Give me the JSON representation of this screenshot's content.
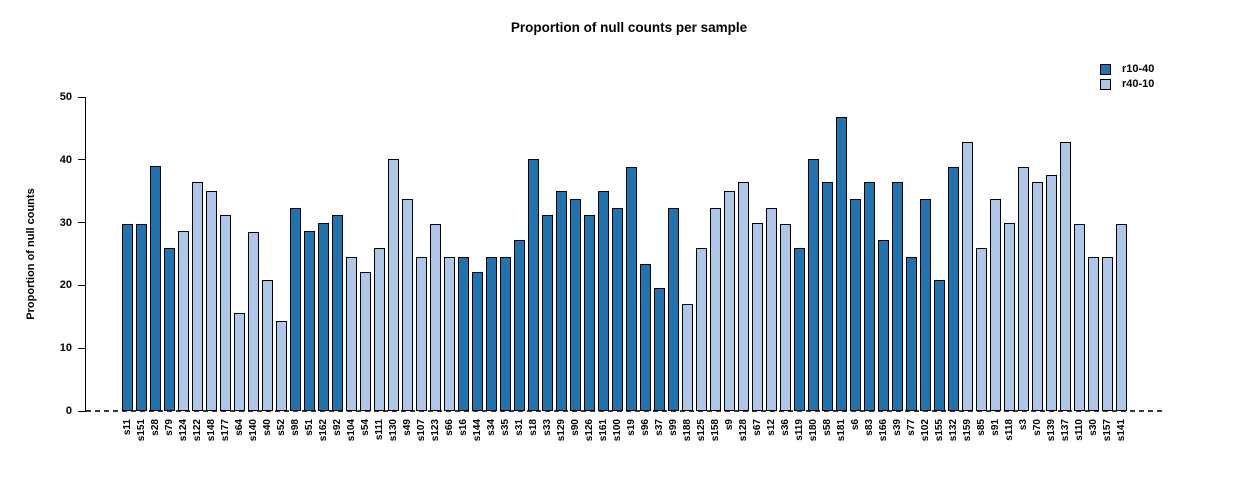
{
  "chart_data": {
    "type": "bar",
    "title": "Proportion of null counts per sample",
    "xlabel": "",
    "ylabel": "Proportion of null counts",
    "ylim": [
      0,
      50
    ],
    "yticks": [
      0,
      10,
      20,
      30,
      40,
      50
    ],
    "grid": false,
    "legend_position": "top-right",
    "zero_baseline_style": "dashed",
    "legend": [
      {
        "label": "r10-40",
        "color": "#2073ae"
      },
      {
        "label": "r40-10",
        "color": "#aec7e8"
      }
    ],
    "bars": [
      {
        "sample": "s11",
        "value": 29.8,
        "series": "r10-40"
      },
      {
        "sample": "s151",
        "value": 29.8,
        "series": "r10-40"
      },
      {
        "sample": "s28",
        "value": 39.0,
        "series": "r10-40"
      },
      {
        "sample": "s79",
        "value": 26.0,
        "series": "r10-40"
      },
      {
        "sample": "s124",
        "value": 28.6,
        "series": "r40-10"
      },
      {
        "sample": "s122",
        "value": 36.4,
        "series": "r40-10"
      },
      {
        "sample": "s148",
        "value": 35.0,
        "series": "r40-10"
      },
      {
        "sample": "s177",
        "value": 31.2,
        "series": "r40-10"
      },
      {
        "sample": "s64",
        "value": 15.6,
        "series": "r40-10"
      },
      {
        "sample": "s140",
        "value": 28.5,
        "series": "r40-10"
      },
      {
        "sample": "s40",
        "value": 20.8,
        "series": "r40-10"
      },
      {
        "sample": "s52",
        "value": 14.4,
        "series": "r40-10"
      },
      {
        "sample": "s98",
        "value": 32.4,
        "series": "r10-40"
      },
      {
        "sample": "s51",
        "value": 28.6,
        "series": "r10-40"
      },
      {
        "sample": "s162",
        "value": 29.9,
        "series": "r10-40"
      },
      {
        "sample": "s92",
        "value": 31.2,
        "series": "r10-40"
      },
      {
        "sample": "s104",
        "value": 24.6,
        "series": "r40-10"
      },
      {
        "sample": "s54",
        "value": 22.1,
        "series": "r40-10"
      },
      {
        "sample": "s111",
        "value": 26.0,
        "series": "r40-10"
      },
      {
        "sample": "s130",
        "value": 40.2,
        "series": "r40-10"
      },
      {
        "sample": "s49",
        "value": 33.8,
        "series": "r40-10"
      },
      {
        "sample": "s107",
        "value": 24.6,
        "series": "r40-10"
      },
      {
        "sample": "s123",
        "value": 29.8,
        "series": "r40-10"
      },
      {
        "sample": "s66",
        "value": 24.6,
        "series": "r40-10"
      },
      {
        "sample": "s16",
        "value": 24.6,
        "series": "r10-40"
      },
      {
        "sample": "s144",
        "value": 22.1,
        "series": "r10-40"
      },
      {
        "sample": "s34",
        "value": 24.6,
        "series": "r10-40"
      },
      {
        "sample": "s35",
        "value": 24.6,
        "series": "r10-40"
      },
      {
        "sample": "s31",
        "value": 27.3,
        "series": "r10-40"
      },
      {
        "sample": "s18",
        "value": 40.1,
        "series": "r10-40"
      },
      {
        "sample": "s33",
        "value": 31.2,
        "series": "r10-40"
      },
      {
        "sample": "s129",
        "value": 35.0,
        "series": "r10-40"
      },
      {
        "sample": "s90",
        "value": 33.8,
        "series": "r10-40"
      },
      {
        "sample": "s126",
        "value": 31.2,
        "series": "r10-40"
      },
      {
        "sample": "s161",
        "value": 35.0,
        "series": "r10-40"
      },
      {
        "sample": "s100",
        "value": 32.4,
        "series": "r10-40"
      },
      {
        "sample": "s19",
        "value": 38.9,
        "series": "r10-40"
      },
      {
        "sample": "s96",
        "value": 23.4,
        "series": "r10-40"
      },
      {
        "sample": "s37",
        "value": 19.6,
        "series": "r10-40"
      },
      {
        "sample": "s99",
        "value": 32.4,
        "series": "r10-40"
      },
      {
        "sample": "s188",
        "value": 17.0,
        "series": "r40-10"
      },
      {
        "sample": "s125",
        "value": 26.0,
        "series": "r40-10"
      },
      {
        "sample": "s158",
        "value": 32.4,
        "series": "r40-10"
      },
      {
        "sample": "s9",
        "value": 35.0,
        "series": "r40-10"
      },
      {
        "sample": "s128",
        "value": 36.4,
        "series": "r40-10"
      },
      {
        "sample": "s67",
        "value": 29.9,
        "series": "r40-10"
      },
      {
        "sample": "s12",
        "value": 32.4,
        "series": "r40-10"
      },
      {
        "sample": "s36",
        "value": 29.8,
        "series": "r40-10"
      },
      {
        "sample": "s119",
        "value": 26.0,
        "series": "r10-40"
      },
      {
        "sample": "s180",
        "value": 40.2,
        "series": "r10-40"
      },
      {
        "sample": "s58",
        "value": 36.4,
        "series": "r10-40"
      },
      {
        "sample": "s181",
        "value": 46.8,
        "series": "r10-40"
      },
      {
        "sample": "s6",
        "value": 33.8,
        "series": "r10-40"
      },
      {
        "sample": "s83",
        "value": 36.4,
        "series": "r10-40"
      },
      {
        "sample": "s166",
        "value": 27.3,
        "series": "r10-40"
      },
      {
        "sample": "s39",
        "value": 36.4,
        "series": "r10-40"
      },
      {
        "sample": "s77",
        "value": 24.6,
        "series": "r10-40"
      },
      {
        "sample": "s102",
        "value": 33.8,
        "series": "r10-40"
      },
      {
        "sample": "s155",
        "value": 20.9,
        "series": "r10-40"
      },
      {
        "sample": "s132",
        "value": 38.9,
        "series": "r10-40"
      },
      {
        "sample": "s159",
        "value": 42.8,
        "series": "r40-10"
      },
      {
        "sample": "s85",
        "value": 26.0,
        "series": "r40-10"
      },
      {
        "sample": "s91",
        "value": 33.8,
        "series": "r40-10"
      },
      {
        "sample": "s118",
        "value": 29.9,
        "series": "r40-10"
      },
      {
        "sample": "s3",
        "value": 38.9,
        "series": "r40-10"
      },
      {
        "sample": "s70",
        "value": 36.4,
        "series": "r40-10"
      },
      {
        "sample": "s139",
        "value": 37.6,
        "series": "r40-10"
      },
      {
        "sample": "s137",
        "value": 42.8,
        "series": "r40-10"
      },
      {
        "sample": "s110",
        "value": 29.8,
        "series": "r40-10"
      },
      {
        "sample": "s30",
        "value": 24.6,
        "series": "r40-10"
      },
      {
        "sample": "s157",
        "value": 24.6,
        "series": "r40-10"
      },
      {
        "sample": "s141",
        "value": 29.8,
        "series": "r40-10"
      }
    ]
  }
}
